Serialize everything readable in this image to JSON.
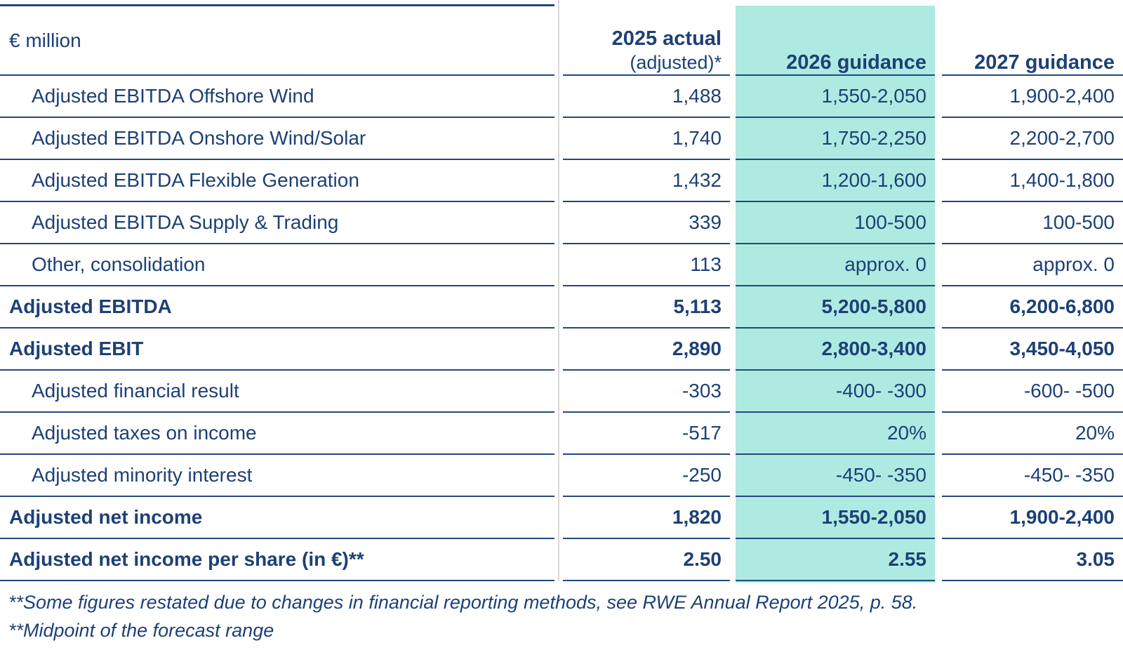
{
  "colors": {
    "text_navy": "#1d4076",
    "rule_navy": "#24487e",
    "highlight_teal": "#aeeae1",
    "column_separator_grey": "#d9d9d9",
    "background": "#ffffff"
  },
  "table": {
    "unit_header": "€ million",
    "column_headers": [
      {
        "line1": "2025 actual",
        "line2": "(adjusted)*",
        "highlight": false
      },
      {
        "line1": "2026 guidance",
        "line2": "",
        "highlight": true
      },
      {
        "line1": "2027 guidance",
        "line2": "",
        "highlight": false
      }
    ],
    "rows": [
      {
        "label": "Adjusted EBITDA Offshore Wind",
        "style": "sub",
        "values": [
          "1,488",
          "1,550-2,050",
          "1,900-2,400"
        ]
      },
      {
        "label": "Adjusted EBITDA Onshore Wind/Solar",
        "style": "sub",
        "values": [
          "1,740",
          "1,750-2,250",
          "2,200-2,700"
        ]
      },
      {
        "label": "Adjusted EBITDA Flexible Generation",
        "style": "sub",
        "values": [
          "1,432",
          "1,200-1,600",
          "1,400-1,800"
        ]
      },
      {
        "label": "Adjusted EBITDA Supply & Trading",
        "style": "sub",
        "values": [
          "339",
          "100-500",
          "100-500"
        ]
      },
      {
        "label": "Other, consolidation",
        "style": "sub",
        "values": [
          "113",
          "approx. 0",
          "approx. 0"
        ]
      },
      {
        "label": "Adjusted EBITDA",
        "style": "total",
        "values": [
          "5,113",
          "5,200-5,800",
          "6,200-6,800"
        ]
      },
      {
        "label": "Adjusted EBIT",
        "style": "total",
        "values": [
          "2,890",
          "2,800-3,400",
          "3,450-4,050"
        ]
      },
      {
        "label": "Adjusted financial result",
        "style": "sub",
        "values": [
          "-303",
          "-400- -300",
          "-600- -500"
        ]
      },
      {
        "label": "Adjusted taxes on income",
        "style": "sub",
        "values": [
          "-517",
          "20%",
          "20%"
        ]
      },
      {
        "label": "Adjusted minority interest",
        "style": "sub",
        "values": [
          "-250",
          "-450- -350",
          "-450- -350"
        ]
      },
      {
        "label": "Adjusted net income",
        "style": "total",
        "values": [
          "1,820",
          "1,550-2,050",
          "1,900-2,400"
        ]
      },
      {
        "label": "Adjusted net income per share (in €)**",
        "style": "total",
        "values": [
          "2.50",
          "2.55",
          "3.05"
        ]
      }
    ],
    "footnotes": [
      "**Some figures restated due to changes in financial reporting methods, see RWE Annual Report 2025, p. 58.",
      "**Midpoint of the forecast range"
    ]
  }
}
